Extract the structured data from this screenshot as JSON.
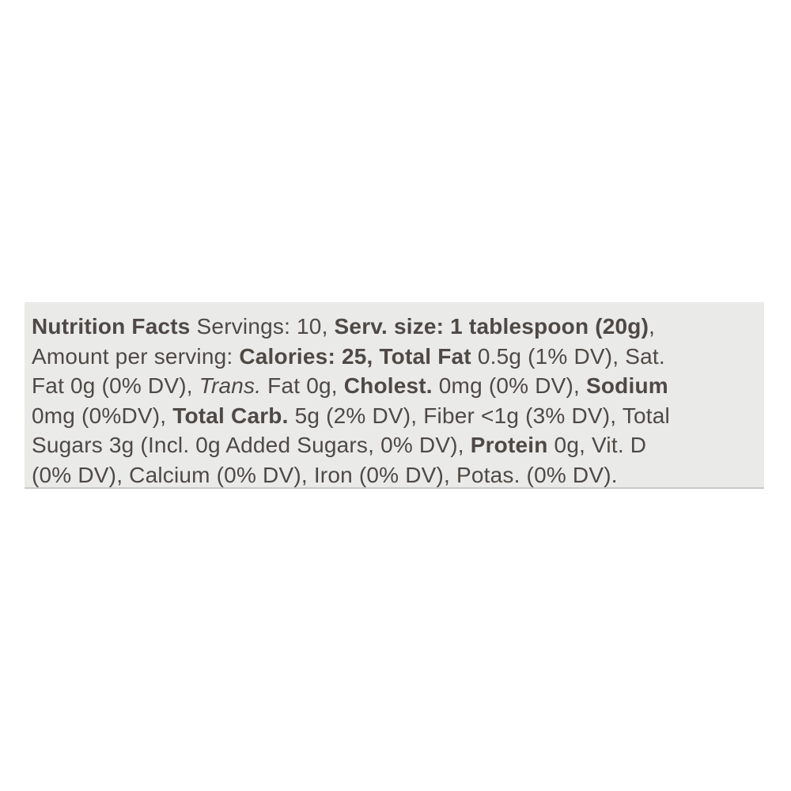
{
  "label": {
    "type": "nutrition-facts-linear",
    "colors": {
      "page_background": "#ffffff",
      "card_background": "#eaeae9",
      "text": "#4e4944",
      "card_bottom_edge": "#c9c9c7"
    },
    "lines": [
      {
        "segments": [
          {
            "style": "bold",
            "text": "Nutrition Facts"
          },
          {
            "style": "regular",
            "text": " Servings: 10, "
          },
          {
            "style": "bold",
            "text": "Serv. size: 1 tablespoon (20g)"
          },
          {
            "style": "regular",
            "text": ","
          }
        ]
      },
      {
        "segments": [
          {
            "style": "regular",
            "text": "Amount per serving: "
          },
          {
            "style": "bold",
            "text": "Calories: 25, Total Fat"
          },
          {
            "style": "regular",
            "text": " 0.5g (1% DV), Sat."
          }
        ]
      },
      {
        "segments": [
          {
            "style": "regular",
            "text": "Fat 0g (0% DV), "
          },
          {
            "style": "italic",
            "text": "Trans."
          },
          {
            "style": "regular",
            "text": " Fat 0g, "
          },
          {
            "style": "bold",
            "text": "Cholest."
          },
          {
            "style": "regular",
            "text": " 0mg (0% DV), "
          },
          {
            "style": "bold",
            "text": "Sodium"
          }
        ]
      },
      {
        "segments": [
          {
            "style": "regular",
            "text": "0mg (0%DV), "
          },
          {
            "style": "bold",
            "text": "Total Carb."
          },
          {
            "style": "regular",
            "text": " 5g (2% DV), Fiber <1g (3% DV), Total"
          }
        ]
      },
      {
        "segments": [
          {
            "style": "regular",
            "text": "Sugars 3g (Incl. 0g Added Sugars, 0% DV), "
          },
          {
            "style": "bold",
            "text": "Protein"
          },
          {
            "style": "regular",
            "text": " 0g, Vit. D"
          }
        ]
      },
      {
        "segments": [
          {
            "style": "regular",
            "text": "(0% DV), Calcium (0% DV), Iron (0% DV), Potas. (0% DV)."
          }
        ]
      }
    ]
  }
}
